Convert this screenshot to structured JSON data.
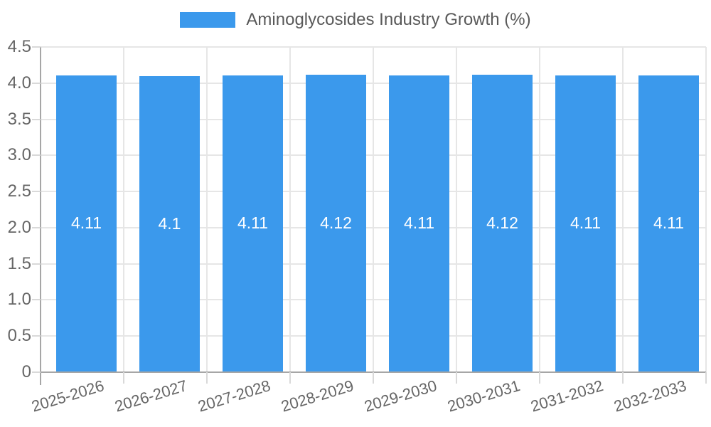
{
  "legend": {
    "label": "Aminoglycosides Industry Growth (%)",
    "swatch_color": "#3B99EC"
  },
  "chart_data": {
    "type": "bar",
    "title": "Aminoglycosides Industry Growth (%)",
    "categories": [
      "2025-2026",
      "2026-2027",
      "2027-2028",
      "2028-2029",
      "2029-2030",
      "2030-2031",
      "2031-2032",
      "2032-2033"
    ],
    "values": [
      4.11,
      4.1,
      4.11,
      4.12,
      4.11,
      4.12,
      4.11,
      4.11
    ],
    "bar_labels": [
      "4.11",
      "4.1",
      "4.11",
      "4.12",
      "4.11",
      "4.12",
      "4.11",
      "4.11"
    ],
    "xlabel": "",
    "ylabel": "",
    "ylim": [
      0,
      4.5
    ],
    "ytick_step": 0.5,
    "ytick_labels": [
      "0",
      "0.5",
      "1.0",
      "1.5",
      "2.0",
      "2.5",
      "3.0",
      "3.5",
      "4.0",
      "4.5"
    ],
    "grid": true,
    "legend_position": "top",
    "colors": {
      "bar": "#3B99EC",
      "value_label": "#ffffff",
      "gridline": "#e6e6e6",
      "tick_mark": "#d9d9d9",
      "axis_line": "#a6a6a6",
      "tick_text": "#666666",
      "title_text": "#595959",
      "background": "#ffffff"
    }
  }
}
